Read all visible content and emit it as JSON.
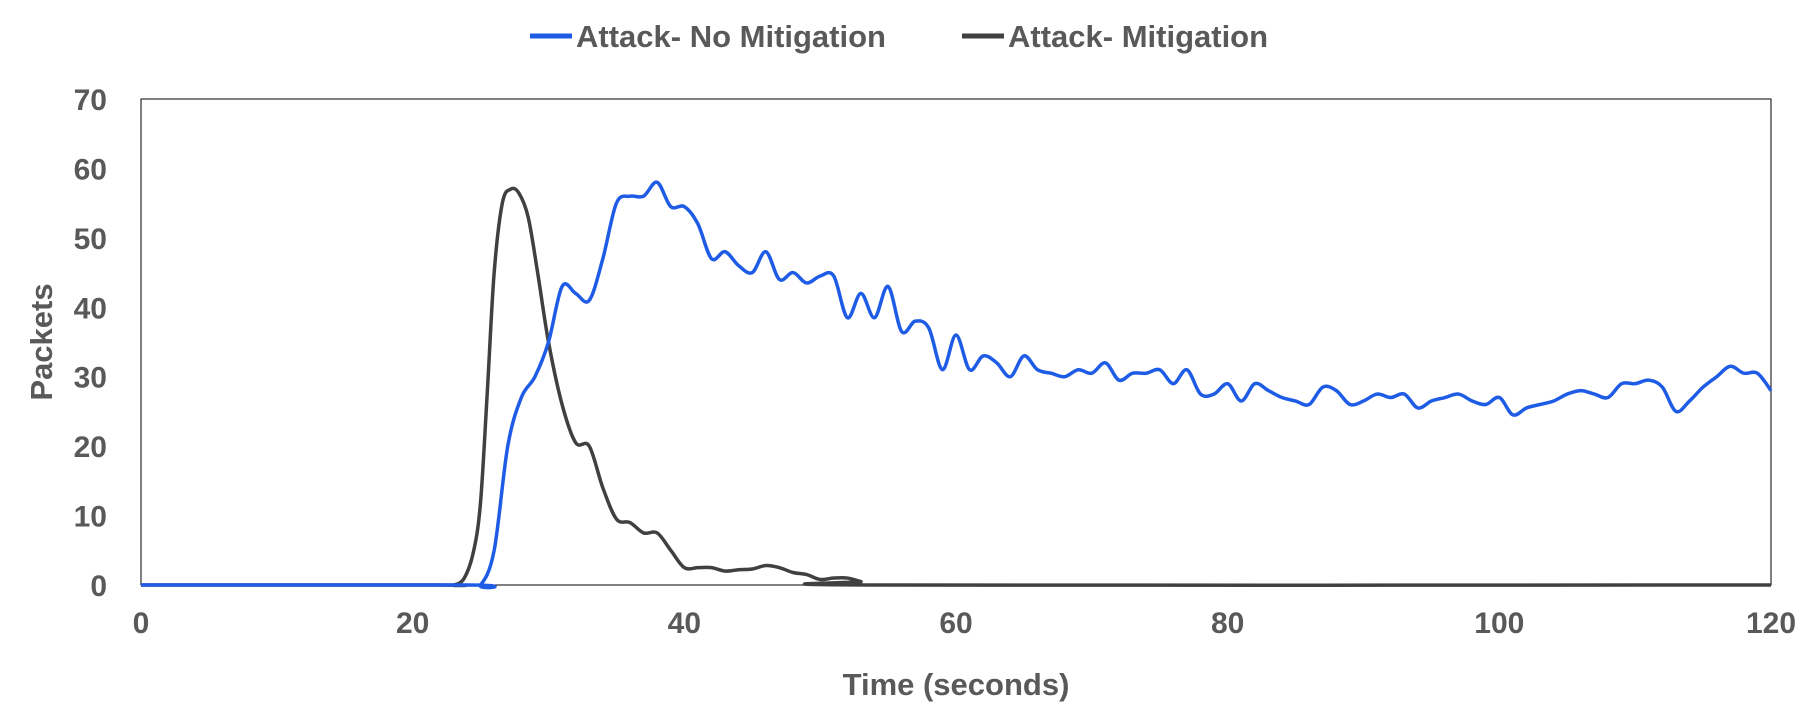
{
  "chart_data": {
    "type": "line",
    "xlabel": "Time (seconds)",
    "ylabel": "Packets",
    "xlim": [
      0,
      120
    ],
    "ylim": [
      0,
      70
    ],
    "xticks": [
      0,
      20,
      40,
      60,
      80,
      100,
      120
    ],
    "yticks": [
      0,
      10,
      20,
      30,
      40,
      50,
      60,
      70
    ],
    "grid": false,
    "legend_position": "top-center",
    "series": [
      {
        "name": "Attack- No Mitigation",
        "color": "#1f5ce6",
        "points": [
          [
            0,
            0
          ],
          [
            24,
            0
          ],
          [
            25,
            0
          ],
          [
            26,
            5
          ],
          [
            27,
            20
          ],
          [
            28,
            27
          ],
          [
            29,
            30
          ],
          [
            30,
            35
          ],
          [
            31,
            43
          ],
          [
            32,
            42
          ],
          [
            33,
            41
          ],
          [
            34,
            47
          ],
          [
            35,
            55
          ],
          [
            36,
            56
          ],
          [
            37,
            56
          ],
          [
            38,
            58
          ],
          [
            39,
            54.5
          ],
          [
            40,
            54.5
          ],
          [
            41,
            52
          ],
          [
            42,
            47
          ],
          [
            43,
            48
          ],
          [
            44,
            46
          ],
          [
            45,
            45
          ],
          [
            46,
            48
          ],
          [
            47,
            44
          ],
          [
            48,
            45
          ],
          [
            49,
            43.5
          ],
          [
            50,
            44.5
          ],
          [
            51,
            44.5
          ],
          [
            52,
            38.5
          ],
          [
            53,
            42
          ],
          [
            54,
            38.5
          ],
          [
            55,
            43
          ],
          [
            56,
            36.5
          ],
          [
            57,
            38
          ],
          [
            58,
            37
          ],
          [
            59,
            31
          ],
          [
            60,
            36
          ],
          [
            61,
            31
          ],
          [
            62,
            33
          ],
          [
            63,
            32
          ],
          [
            64,
            30
          ],
          [
            65,
            33
          ],
          [
            66,
            31
          ],
          [
            67,
            30.5
          ],
          [
            68,
            30
          ],
          [
            69,
            31
          ],
          [
            70,
            30.5
          ],
          [
            71,
            32
          ],
          [
            72,
            29.5
          ],
          [
            73,
            30.5
          ],
          [
            74,
            30.5
          ],
          [
            75,
            31
          ],
          [
            76,
            29
          ],
          [
            77,
            31
          ],
          [
            78,
            27.5
          ],
          [
            79,
            27.5
          ],
          [
            80,
            29
          ],
          [
            81,
            26.5
          ],
          [
            82,
            29
          ],
          [
            83,
            28
          ],
          [
            84,
            27
          ],
          [
            85,
            26.5
          ],
          [
            86,
            26
          ],
          [
            87,
            28.5
          ],
          [
            88,
            28
          ],
          [
            89,
            26
          ],
          [
            90,
            26.5
          ],
          [
            91,
            27.5
          ],
          [
            92,
            27
          ],
          [
            93,
            27.5
          ],
          [
            94,
            25.5
          ],
          [
            95,
            26.5
          ],
          [
            96,
            27
          ],
          [
            97,
            27.5
          ],
          [
            98,
            26.5
          ],
          [
            99,
            26
          ],
          [
            100,
            27
          ],
          [
            101,
            24.5
          ],
          [
            102,
            25.5
          ],
          [
            103,
            26
          ],
          [
            104,
            26.5
          ],
          [
            105,
            27.5
          ],
          [
            106,
            28
          ],
          [
            107,
            27.5
          ],
          [
            108,
            27
          ],
          [
            109,
            29
          ],
          [
            110,
            29
          ],
          [
            111,
            29.5
          ],
          [
            112,
            28.5
          ],
          [
            113,
            25
          ],
          [
            114,
            26.5
          ],
          [
            115,
            28.5
          ],
          [
            116,
            30
          ],
          [
            117,
            31.5
          ],
          [
            118,
            30.5
          ],
          [
            119,
            30.5
          ],
          [
            120,
            28
          ]
        ]
      },
      {
        "name": "Attack- Mitigation",
        "color": "#404040",
        "points": [
          [
            0,
            0
          ],
          [
            22,
            0
          ],
          [
            23,
            0
          ],
          [
            23.8,
            1
          ],
          [
            24.5,
            5
          ],
          [
            25,
            12
          ],
          [
            25.5,
            28
          ],
          [
            26,
            45
          ],
          [
            26.6,
            55
          ],
          [
            27.2,
            57
          ],
          [
            27.8,
            56.5
          ],
          [
            28.5,
            53
          ],
          [
            29.2,
            45
          ],
          [
            30,
            35
          ],
          [
            31,
            26
          ],
          [
            32,
            20.5
          ],
          [
            33,
            20
          ],
          [
            34,
            14
          ],
          [
            35,
            9.5
          ],
          [
            36,
            9
          ],
          [
            37,
            7.5
          ],
          [
            38,
            7.5
          ],
          [
            39,
            5
          ],
          [
            40,
            2.5
          ],
          [
            41,
            2.5
          ],
          [
            42,
            2.5
          ],
          [
            43,
            2
          ],
          [
            44,
            2.2
          ],
          [
            45,
            2.3
          ],
          [
            46,
            2.8
          ],
          [
            47,
            2.5
          ],
          [
            48,
            1.8
          ],
          [
            49,
            1.5
          ],
          [
            50,
            0.8
          ],
          [
            51,
            1
          ],
          [
            52,
            1
          ],
          [
            53,
            0.5
          ],
          [
            54,
            0
          ],
          [
            120,
            0
          ]
        ]
      }
    ]
  }
}
